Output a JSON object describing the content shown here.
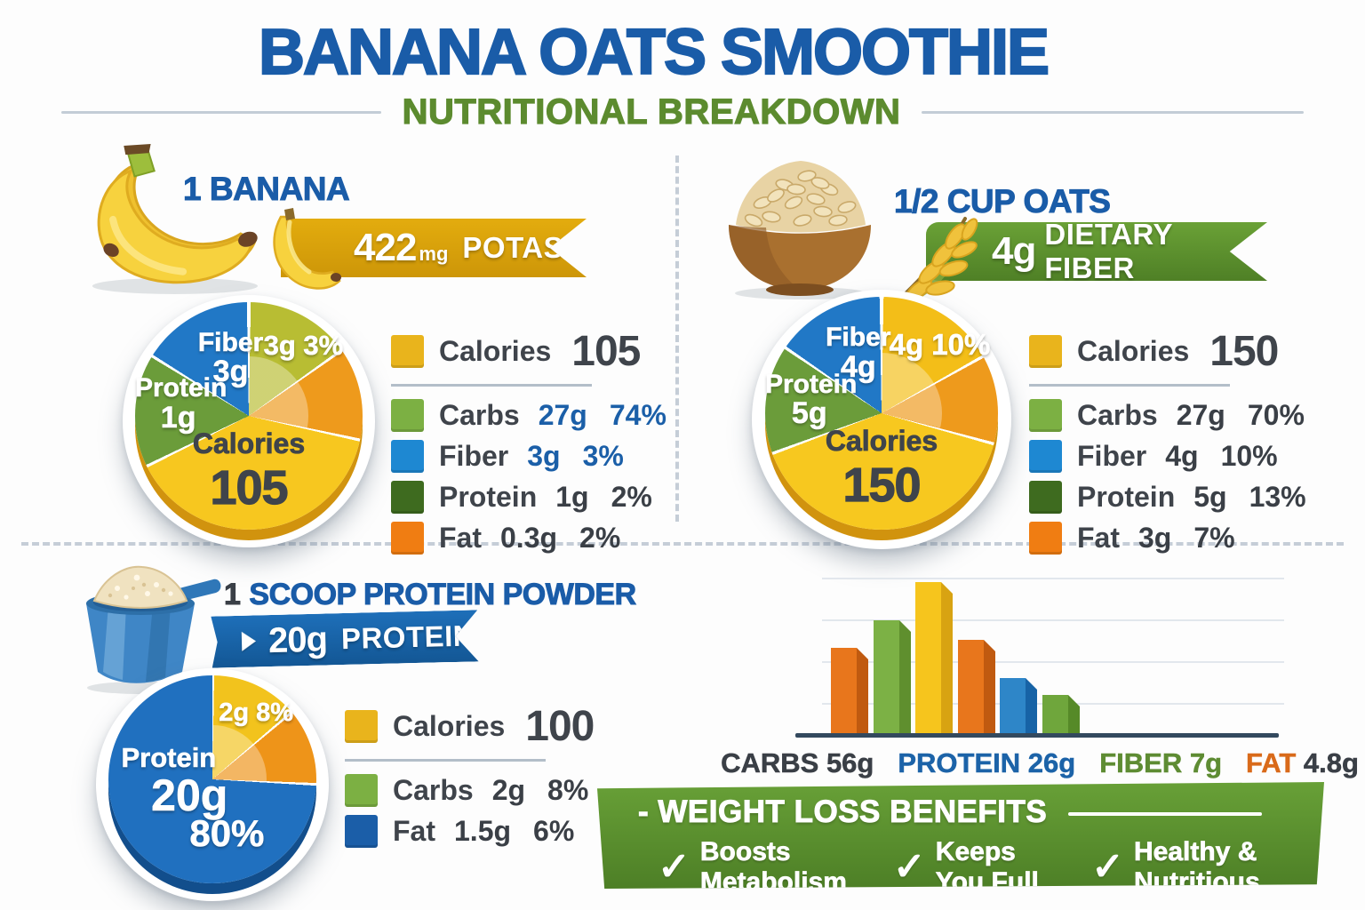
{
  "header": {
    "title": "BANANA OATS SMOOTHIE",
    "subtitle": "NUTRITIONAL BREAKDOWN"
  },
  "colors": {
    "title_blue": "#1a5ca8",
    "subtitle_green": "#5c8b2f",
    "ribbon_gold": "#d9a50d",
    "ribbon_green": "#5a8c2e",
    "ribbon_blue": "#1767b0",
    "pie_yellow": "#f7c71f",
    "pie_orange": "#ee9a1c",
    "pie_green": "#6b9c3a",
    "pie_blue": "#2178c6",
    "benefits_green": "#5d9231"
  },
  "banana": {
    "heading": "1 BANANA",
    "ribbon": {
      "value": "422",
      "unit": "mg",
      "label": "POTASSIUM"
    },
    "pie": {
      "rim": "#d1930e",
      "gloss_to": 103,
      "slices": [
        {
          "color": "#ffffff",
          "from": 0,
          "to": 1
        },
        {
          "color": "#b8bd33",
          "from": 1,
          "to": 54
        },
        {
          "color": "#ffffff",
          "from": 54,
          "to": 55.5
        },
        {
          "color": "#ee9a1c",
          "from": 55.5,
          "to": 101.5
        },
        {
          "color": "#ffffff",
          "from": 101.5,
          "to": 103
        },
        {
          "color": "#f7c71f",
          "from": 103,
          "to": 243
        },
        {
          "color": "#ffffff",
          "from": 243,
          "to": 244.5
        },
        {
          "color": "#6b9c3a",
          "from": 244.5,
          "to": 301
        },
        {
          "color": "#ffffff",
          "from": 301,
          "to": 302.5
        },
        {
          "color": "#2178c6",
          "from": 302.5,
          "to": 359
        },
        {
          "color": "#ffffff",
          "from": 359,
          "to": 360
        }
      ],
      "annotation": "3g 3%",
      "fiber_title": "Fiber",
      "fiber_value": "3g",
      "protein_title": "Protein",
      "protein_value": "1g",
      "center_label": "Calories",
      "center_value": "105"
    },
    "legend": {
      "calories": {
        "swatch": "#e9b41c",
        "label": "Calories",
        "value": "105"
      },
      "rows": [
        {
          "swatch": "#7cb043",
          "label": "Carbs",
          "value": "27g",
          "pct": "74%",
          "color": "#1b5fa8"
        },
        {
          "swatch": "#1e88d2",
          "label": "Fiber",
          "value": "3g",
          "pct": "3%",
          "color": "#1b5fa8"
        },
        {
          "swatch": "#3e6b1f",
          "label": "Protein",
          "value": "1g",
          "pct": "2%",
          "color": "#3a3f46"
        },
        {
          "swatch": "#f07d12",
          "label": "Fat",
          "value": "0.3g",
          "pct": "2%",
          "color": "#3a3f46"
        }
      ]
    }
  },
  "oats": {
    "heading": "1/2 CUP OATS",
    "ribbon": {
      "value": "4g",
      "label": "DIETARY FIBER"
    },
    "pie": {
      "rim": "#d1930e",
      "gloss_to": 104,
      "slices": [
        {
          "color": "#ffffff",
          "from": 0,
          "to": 1
        },
        {
          "color": "#f3be18",
          "from": 1,
          "to": 60
        },
        {
          "color": "#ffffff",
          "from": 60,
          "to": 61.5
        },
        {
          "color": "#ee9a1c",
          "from": 61.5,
          "to": 104.5
        },
        {
          "color": "#ffffff",
          "from": 104.5,
          "to": 106
        },
        {
          "color": "#f7c81f",
          "from": 106,
          "to": 249
        },
        {
          "color": "#ffffff",
          "from": 249,
          "to": 250.5
        },
        {
          "color": "#6b9c3a",
          "from": 250.5,
          "to": 303.5
        },
        {
          "color": "#ffffff",
          "from": 303.5,
          "to": 305
        },
        {
          "color": "#2178c6",
          "from": 305,
          "to": 359
        },
        {
          "color": "#ffffff",
          "from": 359,
          "to": 360
        }
      ],
      "annotation": "4g 10%",
      "fiber_title": "Fiber",
      "fiber_value": "4g",
      "protein_title": "Protein",
      "protein_value": "5g",
      "center_label": "Calories",
      "center_value": "150"
    },
    "legend": {
      "calories": {
        "swatch": "#e9b41c",
        "label": "Calories",
        "value": "150"
      },
      "rows": [
        {
          "swatch": "#7cb043",
          "label": "Carbs",
          "value": "27g",
          "pct": "70%",
          "color": "#3a3f46"
        },
        {
          "swatch": "#1e88d2",
          "label": "Fiber",
          "value": "4g",
          "pct": "10%",
          "color": "#3a3f46"
        },
        {
          "swatch": "#3e6b1f",
          "label": "Protein",
          "value": "5g",
          "pct": "13%",
          "color": "#3a3f46"
        },
        {
          "swatch": "#f07d12",
          "label": "Fat",
          "value": "3g",
          "pct": "7%",
          "color": "#3a3f46"
        }
      ]
    }
  },
  "protein": {
    "heading_number": "1",
    "heading_rest": "SCOOP PROTEIN POWDER",
    "ribbon": {
      "value": "20g",
      "label": "PROTEIN"
    },
    "pie": {
      "rim": "#124e8c",
      "gloss_to": 93,
      "slices": [
        {
          "color": "#ffffff",
          "from": 0,
          "to": 1
        },
        {
          "color": "#f2c31d",
          "from": 1,
          "to": 49
        },
        {
          "color": "#ffffff",
          "from": 49,
          "to": 50.5
        },
        {
          "color": "#ee9419",
          "from": 50.5,
          "to": 92
        },
        {
          "color": "#ffffff",
          "from": 92,
          "to": 93.5
        },
        {
          "color": "#2070bf",
          "from": 93.5,
          "to": 360
        }
      ],
      "annotation": "2g 8%",
      "main_title": "Protein",
      "main_value": "20g",
      "main_pct": "80%"
    },
    "legend": {
      "calories": {
        "swatch": "#e9b41c",
        "label": "Calories",
        "value": "100"
      },
      "rows": [
        {
          "swatch": "#7cb043",
          "label": "Carbs",
          "value": "2g",
          "pct": "8%",
          "color": "#3a3f46"
        },
        {
          "swatch": "#1b5ea8",
          "label": "Fat",
          "value": "1.5g",
          "pct": "6%",
          "color": "#3a3f46"
        }
      ]
    }
  },
  "chart_data": [
    {
      "type": "pie",
      "title": "1 Banana",
      "center_label": "Calories",
      "center_value": 105,
      "slices": [
        {
          "name": "Carbs",
          "grams": 27,
          "percent": 74
        },
        {
          "name": "Fiber",
          "grams": 3,
          "percent": 3
        },
        {
          "name": "Protein",
          "grams": 1,
          "percent": 2
        },
        {
          "name": "Fat",
          "grams": 0.3,
          "percent": 2
        }
      ]
    },
    {
      "type": "pie",
      "title": "1/2 Cup Oats",
      "center_label": "Calories",
      "center_value": 150,
      "slices": [
        {
          "name": "Carbs",
          "grams": 27,
          "percent": 70
        },
        {
          "name": "Fiber",
          "grams": 4,
          "percent": 10
        },
        {
          "name": "Protein",
          "grams": 5,
          "percent": 13
        },
        {
          "name": "Fat",
          "grams": 3,
          "percent": 7
        }
      ]
    },
    {
      "type": "pie",
      "title": "1 Scoop Protein Powder",
      "center_label": "Calories",
      "center_value": 100,
      "slices": [
        {
          "name": "Protein",
          "grams": 20,
          "percent": 80
        },
        {
          "name": "Carbs",
          "grams": 2,
          "percent": 8
        },
        {
          "name": "Fat",
          "grams": 1.5,
          "percent": 6
        }
      ]
    },
    {
      "type": "bar",
      "categories": [
        "CARBS",
        "PROTEIN",
        "FIBER",
        "FAT"
      ],
      "values": [
        56,
        26,
        7,
        4.8
      ],
      "unit": "g",
      "display_values": [
        "56g",
        "26g",
        "7g",
        "4.8g"
      ],
      "label_colors": [
        "#3a3f46",
        "#1c63a8",
        "#5e8c33",
        "#d96a1a"
      ],
      "value_colors": [
        "#3a3f46",
        "#1c63a8",
        "#5e8c33",
        "#3a3f46"
      ],
      "gridlines": 4,
      "bars": [
        {
          "color": "#e8761c",
          "side": "#c05a10",
          "rel": 0.57
        },
        {
          "color": "#7cb145",
          "side": "#5f8f2e",
          "rel": 0.75
        },
        {
          "color": "#f6c51d",
          "side": "#d8a312",
          "rel": 1.0
        },
        {
          "color": "#e8761c",
          "side": "#c05a10",
          "rel": 0.62
        },
        {
          "color": "#2e86c8",
          "side": "#1763a6",
          "rel": 0.37
        },
        {
          "color": "#6fa63c",
          "side": "#568a28",
          "rel": 0.26
        }
      ]
    }
  ],
  "benefits": {
    "heading": "- WEIGHT LOSS BENEFITS",
    "check": "✓",
    "items": [
      "Boosts Metabolism",
      "Keeps You Full",
      "Healthy & Nutritious"
    ]
  }
}
